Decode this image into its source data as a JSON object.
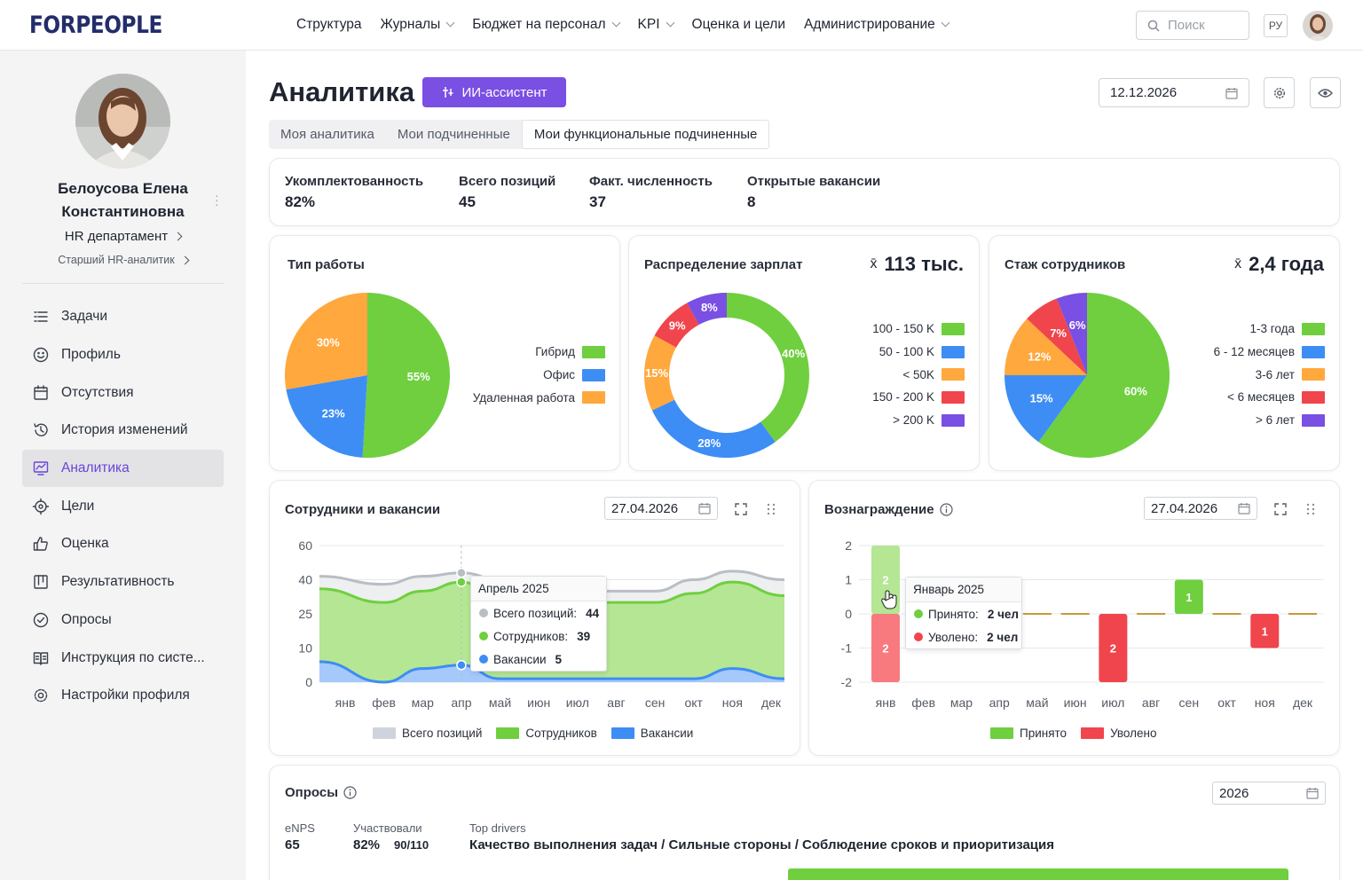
{
  "app": {
    "logo": "FORPEOPLE"
  },
  "nav": [
    {
      "label": "Структура",
      "dropdown": false
    },
    {
      "label": "Журналы",
      "dropdown": true
    },
    {
      "label": "Бюджет на персонал",
      "dropdown": true
    },
    {
      "label": "KPI",
      "dropdown": true
    },
    {
      "label": "Оценка и цели",
      "dropdown": false
    },
    {
      "label": "Администрирование",
      "dropdown": true
    }
  ],
  "header": {
    "search_placeholder": "Поиск",
    "lang": "РУ"
  },
  "user": {
    "name_line1": "Белоусова Елена",
    "name_line2": "Константиновна",
    "department": "HR департамент",
    "role": "Старший HR-аналитик"
  },
  "menu": [
    {
      "label": "Задачи",
      "icon": "list-icon",
      "active": false
    },
    {
      "label": "Профиль",
      "icon": "smile-icon",
      "active": false
    },
    {
      "label": "Отсутствия",
      "icon": "calendar-icon",
      "active": false
    },
    {
      "label": "История изменений",
      "icon": "history-icon",
      "active": false
    },
    {
      "label": "Аналитика",
      "icon": "analytics-icon",
      "active": true
    },
    {
      "label": "Цели",
      "icon": "target-icon",
      "active": false
    },
    {
      "label": "Оценка",
      "icon": "thumbs-up-icon",
      "active": false
    },
    {
      "label": "Результативность",
      "icon": "kanban-icon",
      "active": false
    },
    {
      "label": "Опросы",
      "icon": "check-circle-icon",
      "active": false
    },
    {
      "label": "Инструкция по систе...",
      "icon": "book-icon",
      "active": false
    },
    {
      "label": "Настройки профиля",
      "icon": "gear-icon",
      "active": false
    }
  ],
  "page": {
    "title": "Аналитика",
    "ai_button": "ИИ-ассистент",
    "date": "12.12.2026",
    "tabs": [
      "Моя аналитика",
      "Мои подчиненные",
      "Мои функциональные подчиненные"
    ],
    "active_tab": 2
  },
  "stats": [
    {
      "label": "Укомплектованность",
      "value": "82%"
    },
    {
      "label": "Всего позиций",
      "value": "45"
    },
    {
      "label": "Факт. численность",
      "value": "37"
    },
    {
      "label": "Открытые вакансии",
      "value": "8"
    }
  ],
  "colors": {
    "accent": "#7a4fe3",
    "green": "#6fcf3f",
    "blue": "#3d8df5",
    "orange": "#ffa83d",
    "red": "#f0454c",
    "purple": "#7a4fe3",
    "gray": "#b9bdc4"
  },
  "chart_data": [
    {
      "type": "pie",
      "title": "Тип работы",
      "slices": [
        {
          "label": "Гибрид",
          "value": 55,
          "color": "#6fcf3f"
        },
        {
          "label": "Офис",
          "value": 23,
          "color": "#3d8df5"
        },
        {
          "label": "Удаленная работа",
          "value": 30,
          "color": "#ffa83d"
        }
      ],
      "legend_position": "right"
    },
    {
      "type": "pie",
      "donut": true,
      "title": "Распределение зарплат",
      "summary": "113 тыс.",
      "slices": [
        {
          "label": "100 - 150 K",
          "value": 40,
          "color": "#6fcf3f"
        },
        {
          "label": "50 - 100 K",
          "value": 28,
          "color": "#3d8df5"
        },
        {
          "label": "< 50K",
          "value": 15,
          "color": "#ffa83d"
        },
        {
          "label": "150 - 200 K",
          "value": 9,
          "color": "#f0454c"
        },
        {
          "label": "> 200 K",
          "value": 8,
          "color": "#7a4fe3"
        }
      ],
      "legend_position": "right"
    },
    {
      "type": "pie",
      "title": "Стаж сотрудников",
      "summary": "2,4 года",
      "slices": [
        {
          "label": "1-3 года",
          "value": 60,
          "color": "#6fcf3f"
        },
        {
          "label": "6 - 12 месяцев",
          "value": 15,
          "color": "#3d8df5"
        },
        {
          "label": "3-6 лет",
          "value": 12,
          "color": "#ffa83d"
        },
        {
          "label": "< 6 месяцев",
          "value": 7,
          "color": "#f0454c"
        },
        {
          "label": "> 6 лет",
          "value": 6,
          "color": "#7a4fe3"
        }
      ],
      "legend_position": "right"
    },
    {
      "type": "area",
      "title": "Сотрудники и вакансии",
      "date": "27.04.2026",
      "categories": [
        "янв",
        "фев",
        "мар",
        "апр",
        "май",
        "июн",
        "июл",
        "авг",
        "сен",
        "окт",
        "ноя",
        "дек"
      ],
      "y_ticks": [
        0,
        10,
        25,
        40,
        60
      ],
      "series": [
        {
          "name": "Всего позиций",
          "color": "#b9bdc4",
          "values": [
            42,
            38,
            42,
            44,
            40,
            35,
            35,
            35,
            35,
            40,
            45,
            40
          ]
        },
        {
          "name": "Сотрудников",
          "color": "#6fcf3f",
          "values": [
            36,
            30,
            35,
            39,
            32,
            30,
            30,
            30,
            30,
            34,
            39,
            33
          ]
        },
        {
          "name": "Вакансии",
          "color": "#3d8df5",
          "values": [
            6,
            0,
            4,
            5,
            1,
            1,
            1,
            1,
            1,
            1,
            4,
            1
          ]
        }
      ],
      "legend_position": "bottom",
      "tooltip": {
        "title": "Апрель 2025",
        "rows": [
          {
            "label": "Всего позиций:",
            "value": "44",
            "color": "#b9bdc4"
          },
          {
            "label": "Сотрудников:",
            "value": "39",
            "color": "#6fcf3f"
          },
          {
            "label": "Вакансии",
            "value": "5",
            "color": "#3d8df5"
          }
        ]
      }
    },
    {
      "type": "bar",
      "title": "Вознаграждение",
      "date": "27.04.2026",
      "categories": [
        "янв",
        "фев",
        "мар",
        "апр",
        "май",
        "июн",
        "июл",
        "авг",
        "сен",
        "окт",
        "ноя",
        "дек"
      ],
      "y_ticks": [
        -2,
        -1,
        0,
        1,
        2
      ],
      "series": [
        {
          "name": "Принято",
          "color": "#6fcf3f",
          "values": [
            2,
            0,
            0,
            0,
            0,
            0,
            0,
            0,
            1,
            0,
            0,
            0
          ]
        },
        {
          "name": "Уволено",
          "color": "#f0454c",
          "values": [
            -2,
            0,
            0,
            0,
            0,
            0,
            -2,
            0,
            0,
            0,
            -1,
            0
          ]
        }
      ],
      "legend_position": "bottom",
      "tooltip": {
        "title": "Январь 2025",
        "rows": [
          {
            "label": "Принято:",
            "value": "2 чел",
            "color": "#6fcf3f"
          },
          {
            "label": "Уволено:",
            "value": "2 чел",
            "color": "#f0454c"
          }
        ]
      }
    }
  ],
  "surveys": {
    "title": "Опросы",
    "year": "2026",
    "enps_label": "eNPS",
    "enps_value": "65",
    "participated_label": "Участвовали",
    "participated_value": "82%",
    "participated_count": "90/110",
    "drivers_label": "Top drivers",
    "drivers_value": "Качество выполнения задач / Сильные стороны / Соблюдение сроков и приоритизация"
  }
}
